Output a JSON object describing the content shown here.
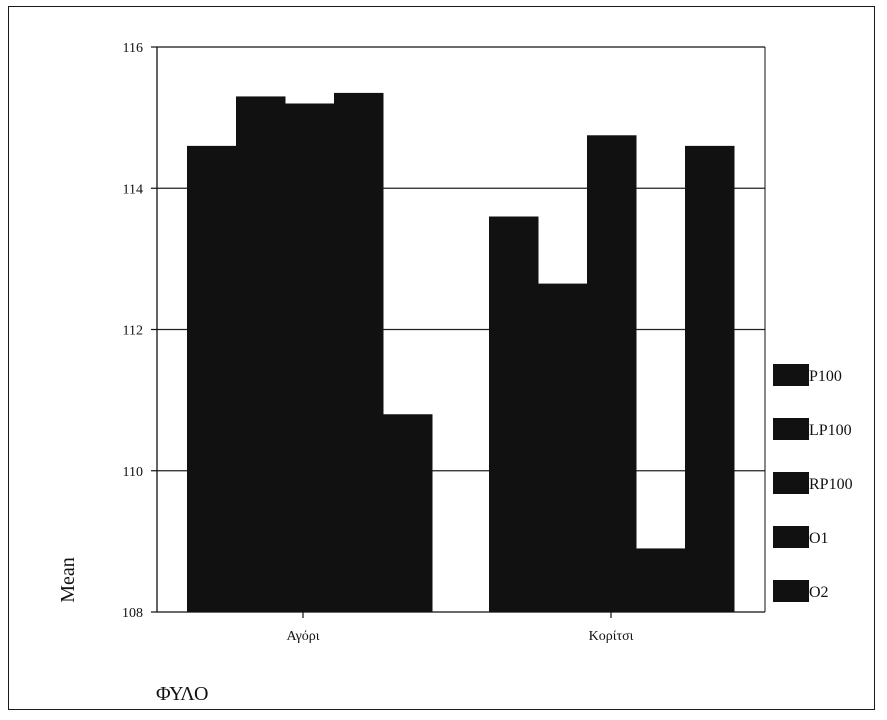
{
  "chart_data": {
    "type": "bar",
    "title": "",
    "xlabel": "ΦΥΛΟ",
    "ylabel": "Mean",
    "ylim": [
      108,
      116
    ],
    "yticks": [
      108,
      110,
      112,
      114,
      116
    ],
    "grid": true,
    "legend_position": "right",
    "categories": [
      "Αγόρι",
      "Κορίτσι"
    ],
    "series": [
      {
        "name": "P100",
        "values": [
          114.6,
          113.6
        ]
      },
      {
        "name": "LP100",
        "values": [
          115.3,
          112.65
        ]
      },
      {
        "name": "RP100",
        "values": [
          115.2,
          114.75
        ]
      },
      {
        "name": "O1",
        "values": [
          115.35,
          108.9
        ]
      },
      {
        "name": "O2",
        "values": [
          110.8,
          114.6
        ]
      }
    ],
    "bar_color": "#111111"
  }
}
